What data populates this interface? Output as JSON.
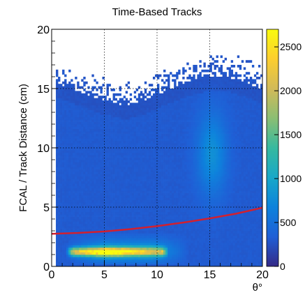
{
  "chart_data": {
    "type": "heatmap",
    "title": "Time-Based Tracks",
    "xlabel": "θ°",
    "ylabel": "FCAL / Track Distance (cm)",
    "xlim": [
      0,
      20
    ],
    "ylim": [
      0,
      20
    ],
    "x_ticks": [
      0,
      5,
      10,
      15,
      20
    ],
    "y_ticks": [
      0,
      5,
      10,
      15,
      20
    ],
    "colorbar": {
      "range": [
        0,
        2700
      ],
      "ticks": [
        0,
        500,
        1000,
        1500,
        2000,
        2500
      ],
      "palette": [
        "#352a87",
        "#1f5fd6",
        "#0d82dc",
        "#18a8c8",
        "#36b99f",
        "#8bbe73",
        "#d2ba58",
        "#fcce2e",
        "#f9fb0e"
      ]
    },
    "grid": true,
    "density_regions": {
      "upper_edge": [
        [
          1,
          15.3
        ],
        [
          3,
          14.6
        ],
        [
          5,
          14.0
        ],
        [
          7,
          13.6
        ],
        [
          9,
          14.1
        ],
        [
          11,
          14.9
        ],
        [
          13,
          15.6
        ],
        [
          15,
          16.0
        ],
        [
          17,
          15.9
        ],
        [
          19,
          15.3
        ],
        [
          20,
          15.0
        ]
      ],
      "core_band": {
        "x": [
          2,
          10.5
        ],
        "y": [
          0.8,
          1.8
        ],
        "peak_x": 5.5,
        "peak_y": 1.25,
        "peak": 2700
      },
      "halo": {
        "x": [
          1.5,
          13
        ],
        "y": [
          0.3,
          2.8
        ],
        "peak": 450
      },
      "plume": {
        "x": [
          13,
          17.5
        ],
        "y": [
          3,
          13
        ],
        "center_x": 15.2,
        "center_y": 9.5,
        "peak": 380
      },
      "background": 150
    },
    "cut_curve": {
      "color": "#d2202f",
      "x": [
        0,
        2.5,
        5,
        7.5,
        10,
        12.5,
        15,
        17.5,
        20
      ],
      "y": [
        2.75,
        2.82,
        2.95,
        3.15,
        3.4,
        3.7,
        4.05,
        4.45,
        4.95
      ]
    }
  }
}
